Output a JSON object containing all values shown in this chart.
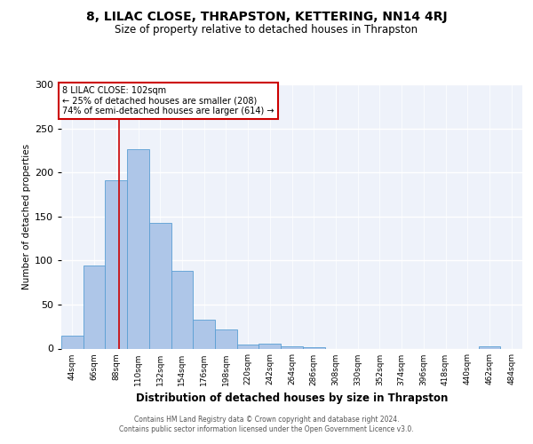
{
  "title": "8, LILAC CLOSE, THRAPSTON, KETTERING, NN14 4RJ",
  "subtitle": "Size of property relative to detached houses in Thrapston",
  "xlabel": "Distribution of detached houses by size in Thrapston",
  "ylabel": "Number of detached properties",
  "bin_labels": [
    "44sqm",
    "66sqm",
    "88sqm",
    "110sqm",
    "132sqm",
    "154sqm",
    "176sqm",
    "198sqm",
    "220sqm",
    "242sqm",
    "264sqm",
    "286sqm",
    "308sqm",
    "330sqm",
    "352sqm",
    "374sqm",
    "396sqm",
    "418sqm",
    "440sqm",
    "462sqm",
    "484sqm"
  ],
  "bin_edges": [
    44,
    66,
    88,
    110,
    132,
    154,
    176,
    198,
    220,
    242,
    264,
    286,
    308,
    330,
    352,
    374,
    396,
    418,
    440,
    462,
    484,
    506
  ],
  "bar_heights": [
    15,
    94,
    191,
    226,
    143,
    88,
    33,
    22,
    5,
    6,
    3,
    2,
    0,
    0,
    0,
    0,
    0,
    0,
    0,
    3,
    0
  ],
  "bar_color": "#aec6e8",
  "bar_edge_color": "#5a9fd4",
  "property_size": 102,
  "annotation_box_text": "8 LILAC CLOSE: 102sqm\n← 25% of detached houses are smaller (208)\n74% of semi-detached houses are larger (614) →",
  "vline_x": 102,
  "vline_color": "#cc0000",
  "ylim": [
    0,
    300
  ],
  "yticks": [
    0,
    50,
    100,
    150,
    200,
    250,
    300
  ],
  "bg_color": "#eef2fa",
  "footer_line1": "Contains HM Land Registry data © Crown copyright and database right 2024.",
  "footer_line2": "Contains public sector information licensed under the Open Government Licence v3.0."
}
